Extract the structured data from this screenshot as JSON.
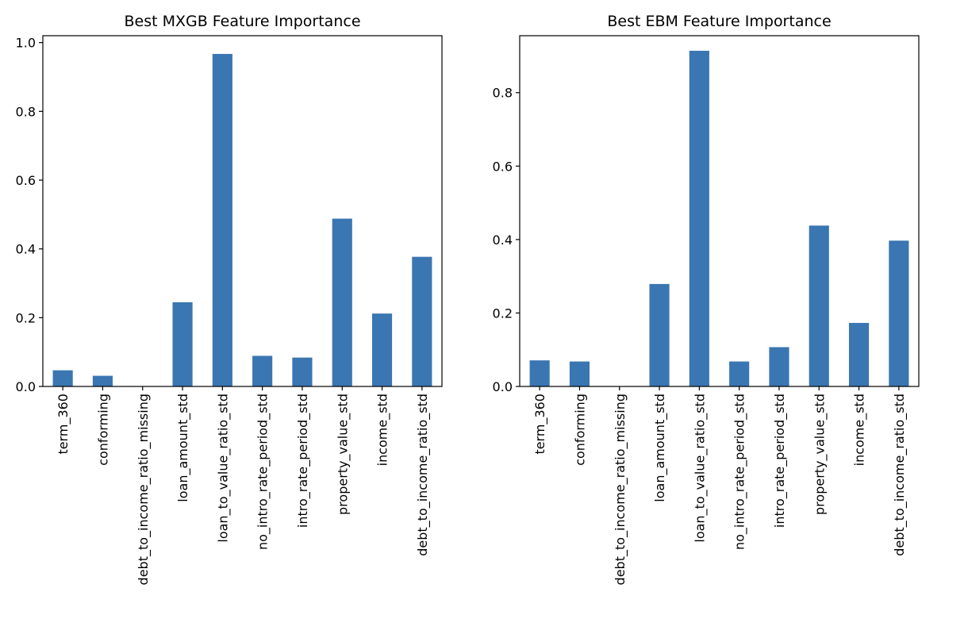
{
  "chart_data": [
    {
      "type": "bar",
      "title": "Best MXGB Feature Importance",
      "xlabel": "",
      "ylabel": "",
      "categories": [
        "term_360",
        "conforming",
        "debt_to_income_ratio_missing",
        "loan_amount_std",
        "loan_to_value_ratio_std",
        "no_intro_rate_period_std",
        "intro_rate_period_std",
        "property_value_std",
        "income_std",
        "debt_to_income_ratio_std"
      ],
      "values": [
        0.047,
        0.031,
        0.0,
        0.245,
        0.967,
        0.089,
        0.084,
        0.488,
        0.212,
        0.377
      ],
      "ylim": [
        0,
        1.02
      ],
      "yticks": [
        0.0,
        0.2,
        0.4,
        0.6,
        0.8,
        1.0
      ],
      "ytick_labels": [
        "0.0",
        "0.2",
        "0.4",
        "0.6",
        "0.8",
        "1.0"
      ],
      "color": "#3a76b1",
      "grid": false,
      "legend": "none"
    },
    {
      "type": "bar",
      "title": "Best EBM Feature Importance",
      "xlabel": "",
      "ylabel": "",
      "categories": [
        "term_360",
        "conforming",
        "debt_to_income_ratio_missing",
        "loan_amount_std",
        "loan_to_value_ratio_std",
        "no_intro_rate_period_std",
        "intro_rate_period_std",
        "property_value_std",
        "income_std",
        "debt_to_income_ratio_std"
      ],
      "values": [
        0.071,
        0.068,
        0.0,
        0.279,
        0.914,
        0.068,
        0.107,
        0.438,
        0.173,
        0.397
      ],
      "ylim": [
        0,
        0.955
      ],
      "yticks": [
        0.0,
        0.2,
        0.4,
        0.6,
        0.8
      ],
      "ytick_labels": [
        "0.0",
        "0.2",
        "0.4",
        "0.6",
        "0.8"
      ],
      "color": "#3a76b1",
      "grid": false,
      "legend": "none"
    }
  ]
}
